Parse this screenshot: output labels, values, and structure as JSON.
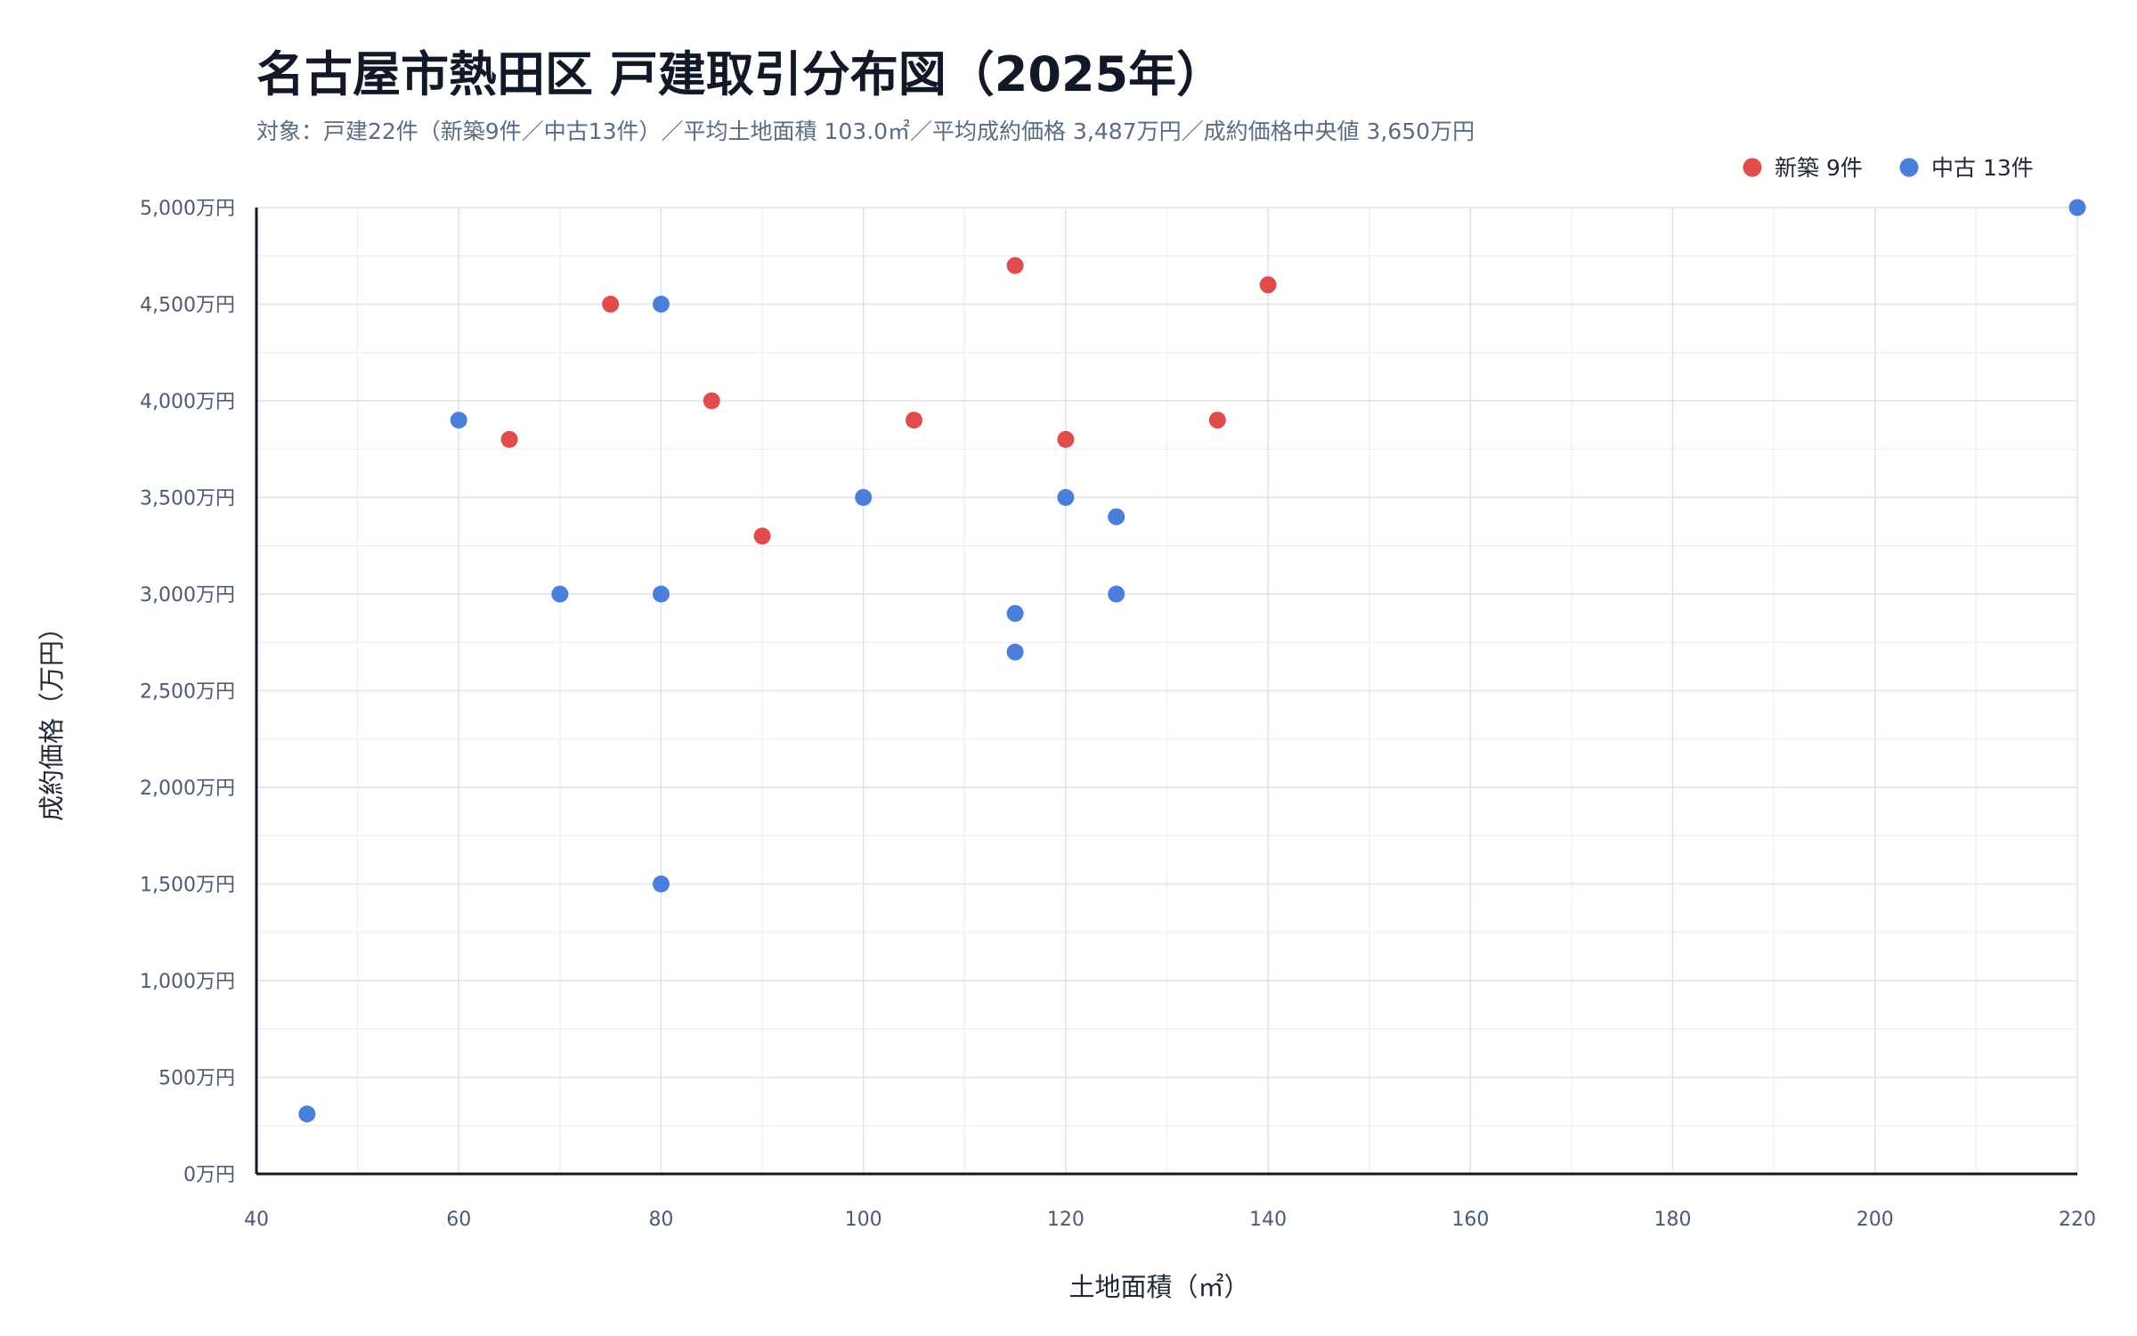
{
  "chart_data": {
    "type": "scatter",
    "title": "名古屋市熱田区 戸建取引分布図（2025年）",
    "subtitle": "対象：戸建22件（新築9件／中古13件）／平均土地面積 103.0㎡／平均成約価格 3,487万円／成約価格中央値 3,650万円",
    "xlabel": "土地面積（㎡）",
    "ylabel": "成約価格（万円）",
    "xlim": [
      40,
      220
    ],
    "ylim": [
      0,
      5000
    ],
    "x_ticks": [
      "40",
      "60",
      "80",
      "100",
      "120",
      "140",
      "160",
      "180",
      "200",
      "220"
    ],
    "y_ticks": [
      "0万円",
      "500万円",
      "1,000万円",
      "1,500万円",
      "2,000万円",
      "2,500万円",
      "3,000万円",
      "3,500万円",
      "4,000万円",
      "4,500万円",
      "5,000万円"
    ],
    "grid": true,
    "legend_position": "top-right",
    "series": [
      {
        "name": "新築 9件",
        "color": "#e04b4b",
        "points": [
          {
            "x": 65,
            "y": 3800
          },
          {
            "x": 75,
            "y": 4500
          },
          {
            "x": 85,
            "y": 4000
          },
          {
            "x": 90,
            "y": 3300
          },
          {
            "x": 105,
            "y": 3900
          },
          {
            "x": 115,
            "y": 4700
          },
          {
            "x": 120,
            "y": 3800
          },
          {
            "x": 135,
            "y": 3900
          },
          {
            "x": 140,
            "y": 4600
          }
        ]
      },
      {
        "name": "中古 13件",
        "color": "#4a80dc",
        "points": [
          {
            "x": 45,
            "y": 310
          },
          {
            "x": 60,
            "y": 3900
          },
          {
            "x": 70,
            "y": 3000
          },
          {
            "x": 80,
            "y": 4500
          },
          {
            "x": 80,
            "y": 3000
          },
          {
            "x": 80,
            "y": 1500
          },
          {
            "x": 100,
            "y": 3500
          },
          {
            "x": 115,
            "y": 2900
          },
          {
            "x": 115,
            "y": 2700
          },
          {
            "x": 120,
            "y": 3500
          },
          {
            "x": 125,
            "y": 3400
          },
          {
            "x": 125,
            "y": 3000
          },
          {
            "x": 220,
            "y": 5000
          }
        ]
      }
    ]
  }
}
